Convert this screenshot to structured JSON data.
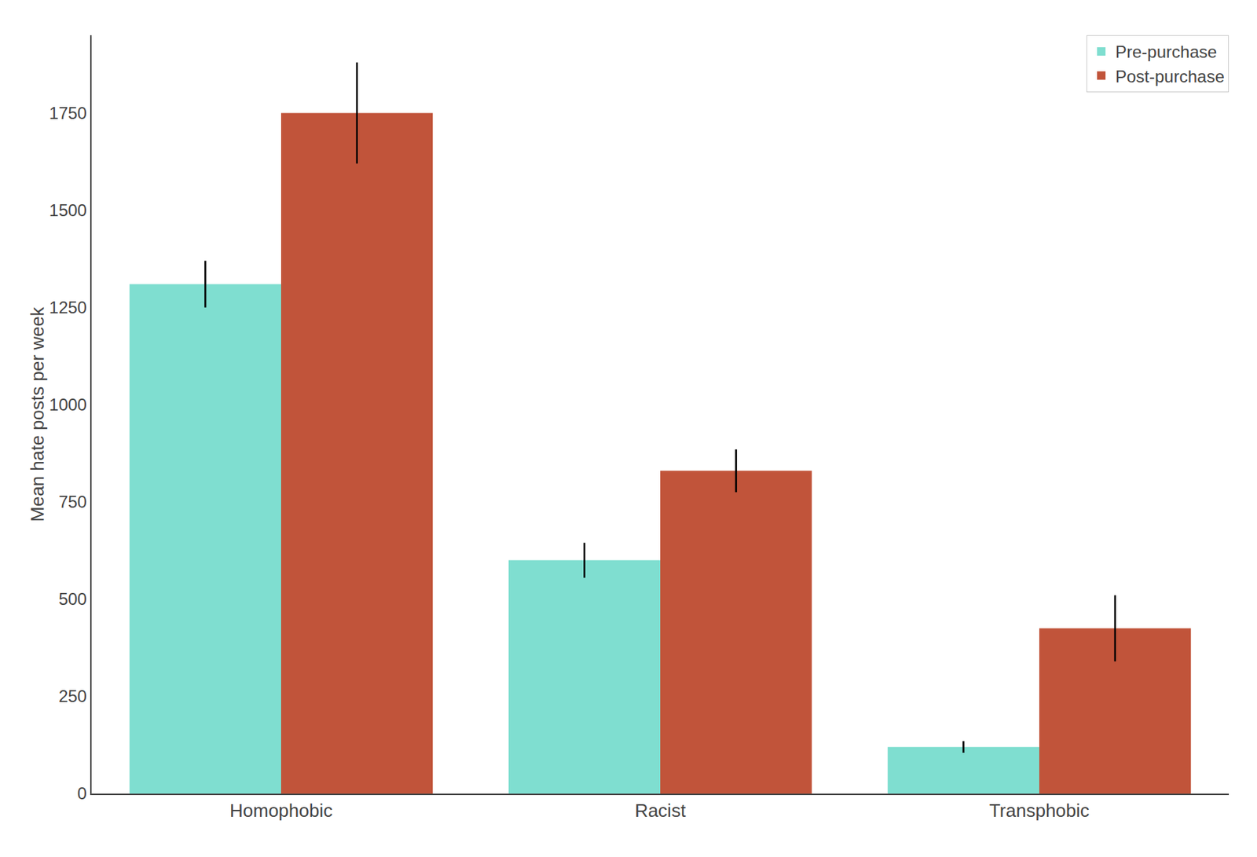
{
  "chart_data": {
    "type": "bar",
    "categories": [
      "Homophobic",
      "Racist",
      "Transphobic"
    ],
    "series": [
      {
        "name": "Pre-purchase",
        "color": "#7FDED0",
        "values": [
          1310,
          600,
          120
        ],
        "error_low": [
          60,
          45,
          15
        ],
        "error_high": [
          60,
          45,
          15
        ]
      },
      {
        "name": "Post-purchase",
        "color": "#C1543A",
        "values": [
          1750,
          830,
          425
        ],
        "error_low": [
          130,
          55,
          85
        ],
        "error_high": [
          130,
          55,
          85
        ]
      }
    ],
    "ylabel": "Mean hate posts per week",
    "ylim": [
      0,
      1950
    ],
    "yticks": [
      0,
      250,
      500,
      750,
      1000,
      1250,
      1500,
      1750
    ],
    "grid": false,
    "legend": "upper right"
  }
}
